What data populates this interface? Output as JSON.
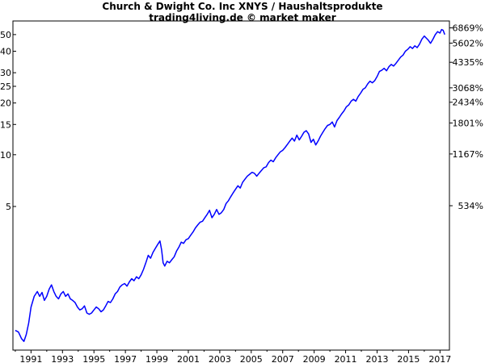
{
  "header": {
    "title": "Church & Dwight Co. Inc XNYS / Haushaltsprodukte",
    "subtitle": "trading4living.de © market maker"
  },
  "chart_data": {
    "type": "line",
    "title": "Church & Dwight Co. Inc XNYS / Haushaltsprodukte",
    "subtitle": "trading4living.de © market maker",
    "xlabel": "",
    "ylabel": "",
    "y_scale": "log",
    "ylim": [
      0.73,
      60
    ],
    "xlim": [
      1989.85,
      2017.6
    ],
    "grid": false,
    "legend": "none",
    "line_color": "#0000ff",
    "x_ticks": [
      "1991",
      "1993",
      "1995",
      "1997",
      "1999",
      "2001",
      "2003",
      "2005",
      "2007",
      "2009",
      "2011",
      "2013",
      "2015",
      "2017"
    ],
    "y_left_ticks": [
      {
        "label": "50",
        "value": 50
      },
      {
        "label": "40",
        "value": 40
      },
      {
        "label": "30",
        "value": 30
      },
      {
        "label": "25",
        "value": 25
      },
      {
        "label": "20",
        "value": 20
      },
      {
        "label": "15",
        "value": 15
      },
      {
        "label": "10",
        "value": 10
      },
      {
        "label": "5",
        "value": 5
      }
    ],
    "y_right_ticks": [
      {
        "label": "6869%",
        "value": 54.7
      },
      {
        "label": "5602%",
        "value": 44.6
      },
      {
        "label": "4335%",
        "value": 34.5
      },
      {
        "label": "3068%",
        "value": 24.5
      },
      {
        "label": "2434%",
        "value": 20.2
      },
      {
        "label": "1801%",
        "value": 15.3
      },
      {
        "label": "1167%",
        "value": 10.1
      },
      {
        "label": "534%",
        "value": 5.05
      }
    ],
    "series": [
      {
        "values": [
          [
            1990.0,
            0.95
          ],
          [
            1990.2,
            0.93
          ],
          [
            1990.4,
            0.85
          ],
          [
            1990.55,
            0.82
          ],
          [
            1990.7,
            0.9
          ],
          [
            1990.85,
            1.05
          ],
          [
            1991.0,
            1.3
          ],
          [
            1991.2,
            1.5
          ],
          [
            1991.4,
            1.6
          ],
          [
            1991.55,
            1.5
          ],
          [
            1991.7,
            1.58
          ],
          [
            1991.85,
            1.42
          ],
          [
            1992.0,
            1.5
          ],
          [
            1992.15,
            1.65
          ],
          [
            1992.3,
            1.75
          ],
          [
            1992.45,
            1.6
          ],
          [
            1992.6,
            1.5
          ],
          [
            1992.75,
            1.45
          ],
          [
            1992.9,
            1.55
          ],
          [
            1993.05,
            1.6
          ],
          [
            1993.2,
            1.5
          ],
          [
            1993.35,
            1.55
          ],
          [
            1993.5,
            1.45
          ],
          [
            1993.65,
            1.42
          ],
          [
            1993.8,
            1.38
          ],
          [
            1993.95,
            1.3
          ],
          [
            1994.1,
            1.25
          ],
          [
            1994.25,
            1.27
          ],
          [
            1994.4,
            1.32
          ],
          [
            1994.55,
            1.2
          ],
          [
            1994.7,
            1.18
          ],
          [
            1994.85,
            1.2
          ],
          [
            1995.0,
            1.25
          ],
          [
            1995.15,
            1.3
          ],
          [
            1995.3,
            1.27
          ],
          [
            1995.45,
            1.22
          ],
          [
            1995.6,
            1.25
          ],
          [
            1995.75,
            1.32
          ],
          [
            1995.9,
            1.4
          ],
          [
            1996.05,
            1.38
          ],
          [
            1996.2,
            1.45
          ],
          [
            1996.35,
            1.55
          ],
          [
            1996.5,
            1.6
          ],
          [
            1996.65,
            1.7
          ],
          [
            1996.8,
            1.75
          ],
          [
            1996.95,
            1.78
          ],
          [
            1997.1,
            1.72
          ],
          [
            1997.25,
            1.82
          ],
          [
            1997.4,
            1.9
          ],
          [
            1997.55,
            1.85
          ],
          [
            1997.7,
            1.95
          ],
          [
            1997.85,
            1.9
          ],
          [
            1998.0,
            2.0
          ],
          [
            1998.15,
            2.15
          ],
          [
            1998.3,
            2.35
          ],
          [
            1998.45,
            2.6
          ],
          [
            1998.6,
            2.5
          ],
          [
            1998.75,
            2.7
          ],
          [
            1998.9,
            2.85
          ],
          [
            1999.05,
            3.0
          ],
          [
            1999.2,
            3.15
          ],
          [
            1999.3,
            2.8
          ],
          [
            1999.4,
            2.35
          ],
          [
            1999.5,
            2.25
          ],
          [
            1999.65,
            2.4
          ],
          [
            1999.8,
            2.35
          ],
          [
            1999.95,
            2.45
          ],
          [
            2000.1,
            2.55
          ],
          [
            2000.25,
            2.75
          ],
          [
            2000.4,
            2.9
          ],
          [
            2000.55,
            3.1
          ],
          [
            2000.7,
            3.05
          ],
          [
            2000.85,
            3.2
          ],
          [
            2001.0,
            3.25
          ],
          [
            2001.15,
            3.4
          ],
          [
            2001.3,
            3.55
          ],
          [
            2001.45,
            3.75
          ],
          [
            2001.6,
            3.9
          ],
          [
            2001.75,
            4.05
          ],
          [
            2001.9,
            4.1
          ],
          [
            2002.05,
            4.3
          ],
          [
            2002.2,
            4.5
          ],
          [
            2002.35,
            4.75
          ],
          [
            2002.5,
            4.3
          ],
          [
            2002.65,
            4.5
          ],
          [
            2002.8,
            4.8
          ],
          [
            2002.95,
            4.5
          ],
          [
            2003.1,
            4.6
          ],
          [
            2003.25,
            4.8
          ],
          [
            2003.4,
            5.2
          ],
          [
            2003.55,
            5.4
          ],
          [
            2003.7,
            5.7
          ],
          [
            2003.85,
            6.0
          ],
          [
            2004.0,
            6.3
          ],
          [
            2004.15,
            6.6
          ],
          [
            2004.3,
            6.4
          ],
          [
            2004.45,
            6.9
          ],
          [
            2004.6,
            7.2
          ],
          [
            2004.75,
            7.5
          ],
          [
            2004.9,
            7.7
          ],
          [
            2005.05,
            7.9
          ],
          [
            2005.2,
            7.8
          ],
          [
            2005.35,
            7.5
          ],
          [
            2005.5,
            7.8
          ],
          [
            2005.65,
            8.1
          ],
          [
            2005.8,
            8.4
          ],
          [
            2005.95,
            8.5
          ],
          [
            2006.1,
            9.0
          ],
          [
            2006.25,
            9.3
          ],
          [
            2006.4,
            9.1
          ],
          [
            2006.55,
            9.6
          ],
          [
            2006.7,
            10.0
          ],
          [
            2006.85,
            10.4
          ],
          [
            2007.0,
            10.6
          ],
          [
            2007.15,
            11.0
          ],
          [
            2007.3,
            11.5
          ],
          [
            2007.45,
            12.0
          ],
          [
            2007.6,
            12.5
          ],
          [
            2007.75,
            12.0
          ],
          [
            2007.9,
            13.0
          ],
          [
            2008.05,
            12.2
          ],
          [
            2008.2,
            12.8
          ],
          [
            2008.35,
            13.5
          ],
          [
            2008.5,
            13.8
          ],
          [
            2008.65,
            13.2
          ],
          [
            2008.8,
            11.8
          ],
          [
            2008.95,
            12.3
          ],
          [
            2009.1,
            11.4
          ],
          [
            2009.25,
            12.0
          ],
          [
            2009.4,
            12.8
          ],
          [
            2009.55,
            13.5
          ],
          [
            2009.7,
            14.2
          ],
          [
            2009.85,
            14.8
          ],
          [
            2010.0,
            15.0
          ],
          [
            2010.15,
            15.5
          ],
          [
            2010.3,
            14.5
          ],
          [
            2010.45,
            15.8
          ],
          [
            2010.6,
            16.5
          ],
          [
            2010.75,
            17.3
          ],
          [
            2010.9,
            18.0
          ],
          [
            2011.05,
            19.0
          ],
          [
            2011.2,
            19.5
          ],
          [
            2011.35,
            20.5
          ],
          [
            2011.5,
            21.0
          ],
          [
            2011.65,
            20.5
          ],
          [
            2011.8,
            21.8
          ],
          [
            2011.95,
            22.8
          ],
          [
            2012.1,
            24.0
          ],
          [
            2012.25,
            24.5
          ],
          [
            2012.4,
            25.8
          ],
          [
            2012.55,
            26.8
          ],
          [
            2012.7,
            26.2
          ],
          [
            2012.85,
            27.0
          ],
          [
            2013.0,
            28.5
          ],
          [
            2013.15,
            30.5
          ],
          [
            2013.3,
            31.0
          ],
          [
            2013.45,
            31.8
          ],
          [
            2013.6,
            30.8
          ],
          [
            2013.75,
            32.5
          ],
          [
            2013.9,
            33.5
          ],
          [
            2014.05,
            32.8
          ],
          [
            2014.2,
            34.0
          ],
          [
            2014.35,
            35.5
          ],
          [
            2014.5,
            37.0
          ],
          [
            2014.65,
            38.0
          ],
          [
            2014.8,
            40.0
          ],
          [
            2014.95,
            41.0
          ],
          [
            2015.1,
            42.5
          ],
          [
            2015.25,
            41.5
          ],
          [
            2015.4,
            43.0
          ],
          [
            2015.55,
            42.0
          ],
          [
            2015.7,
            44.0
          ],
          [
            2015.85,
            47.0
          ],
          [
            2016.0,
            49.0
          ],
          [
            2016.1,
            48.0
          ],
          [
            2016.25,
            46.5
          ],
          [
            2016.4,
            44.5
          ],
          [
            2016.55,
            47.0
          ],
          [
            2016.7,
            50.0
          ],
          [
            2016.85,
            52.0
          ],
          [
            2017.0,
            51.0
          ],
          [
            2017.1,
            53.5
          ],
          [
            2017.2,
            53.0
          ],
          [
            2017.3,
            50.0
          ]
        ]
      }
    ]
  }
}
